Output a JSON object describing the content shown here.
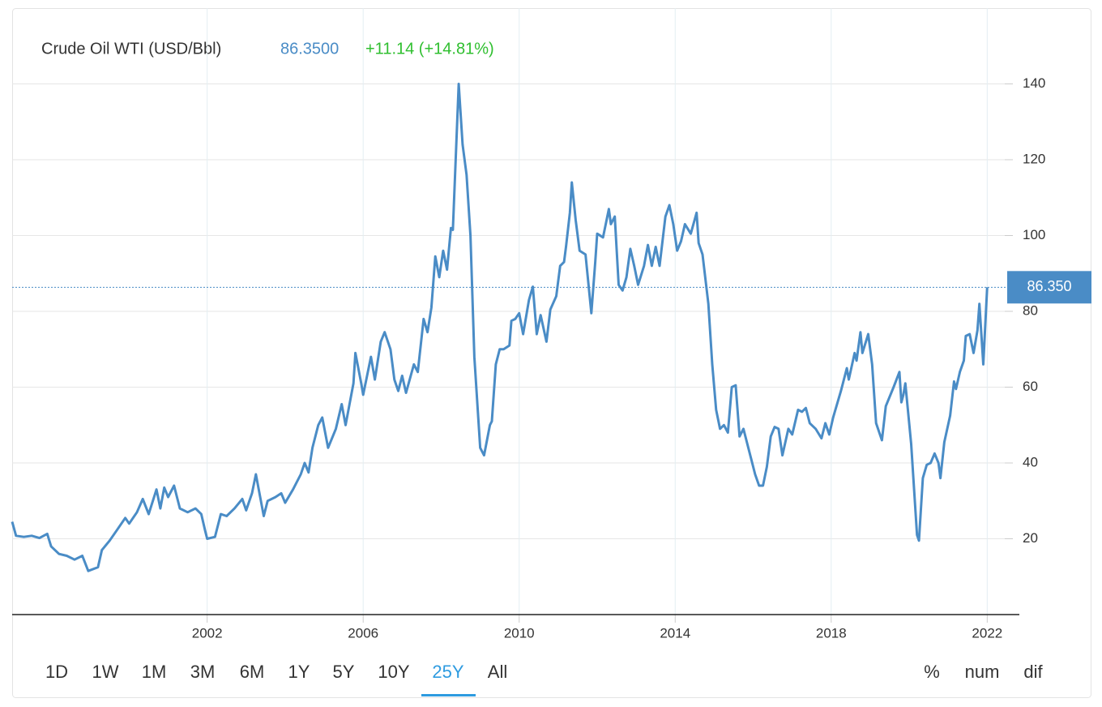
{
  "chart_data": {
    "type": "line",
    "title": "Crude Oil WTI (USD/Bbl)",
    "price": "86.3500",
    "change": "+11.14 (+14.81%)",
    "x": [
      1997.0,
      1997.1,
      1997.3,
      1997.5,
      1997.7,
      1997.9,
      1998.0,
      1998.2,
      1998.4,
      1998.6,
      1998.8,
      1998.95,
      1999.2,
      1999.3,
      1999.5,
      1999.7,
      1999.9,
      2000.0,
      2000.2,
      2000.35,
      2000.5,
      2000.7,
      2000.8,
      2000.9,
      2001.0,
      2001.15,
      2001.3,
      2001.5,
      2001.7,
      2001.85,
      2001.95,
      2002.0,
      2002.2,
      2002.35,
      2002.5,
      2002.7,
      2002.9,
      2003.0,
      2003.15,
      2003.25,
      2003.45,
      2003.55,
      2003.75,
      2003.9,
      2004.0,
      2004.2,
      2004.4,
      2004.5,
      2004.6,
      2004.7,
      2004.85,
      2004.95,
      2005.1,
      2005.3,
      2005.45,
      2005.55,
      2005.75,
      2005.8,
      2005.95,
      2006.0,
      2006.2,
      2006.3,
      2006.45,
      2006.55,
      2006.7,
      2006.8,
      2006.9,
      2007.0,
      2007.1,
      2007.3,
      2007.4,
      2007.55,
      2007.65,
      2007.75,
      2007.85,
      2007.95,
      2008.05,
      2008.15,
      2008.25,
      2008.3,
      2008.45,
      2008.55,
      2008.65,
      2008.75,
      2008.85,
      2008.95,
      2009.0,
      2009.1,
      2009.25,
      2009.3,
      2009.4,
      2009.5,
      2009.6,
      2009.75,
      2009.8,
      2009.9,
      2010.0,
      2010.1,
      2010.25,
      2010.35,
      2010.45,
      2010.55,
      2010.7,
      2010.8,
      2010.95,
      2011.05,
      2011.15,
      2011.2,
      2011.3,
      2011.35,
      2011.45,
      2011.55,
      2011.7,
      2011.85,
      2011.95,
      2012.0,
      2012.15,
      2012.3,
      2012.35,
      2012.45,
      2012.55,
      2012.65,
      2012.75,
      2012.85,
      2012.95,
      2013.05,
      2013.2,
      2013.3,
      2013.4,
      2013.5,
      2013.6,
      2013.75,
      2013.85,
      2013.95,
      2014.05,
      2014.15,
      2014.25,
      2014.4,
      2014.55,
      2014.6,
      2014.7,
      2014.85,
      2014.95,
      2015.05,
      2015.15,
      2015.25,
      2015.35,
      2015.45,
      2015.55,
      2015.65,
      2015.75,
      2015.85,
      2015.95,
      2016.05,
      2016.15,
      2016.25,
      2016.35,
      2016.45,
      2016.55,
      2016.65,
      2016.75,
      2016.9,
      2017.0,
      2017.15,
      2017.25,
      2017.35,
      2017.45,
      2017.6,
      2017.75,
      2017.85,
      2017.95,
      2018.05,
      2018.25,
      2018.4,
      2018.45,
      2018.6,
      2018.65,
      2018.75,
      2018.8,
      2018.95,
      2019.05,
      2019.15,
      2019.3,
      2019.4,
      2019.6,
      2019.75,
      2019.8,
      2019.85,
      2019.9,
      2020.05,
      2020.2,
      2020.25,
      2020.35,
      2020.45,
      2020.55,
      2020.65,
      2020.75,
      2020.8,
      2020.9,
      2021.05,
      2021.15,
      2021.2,
      2021.3,
      2021.4,
      2021.45,
      2021.55,
      2021.65,
      2021.75,
      2021.8,
      2021.9,
      2022.0
    ],
    "series": [
      {
        "name": "Crude Oil WTI",
        "color": "#4a8cc6",
        "values": [
          24.5,
          20.8,
          20.5,
          20.8,
          20.2,
          21.3,
          18,
          16,
          15.5,
          14.5,
          15.5,
          11.5,
          12.5,
          17,
          19.5,
          22.5,
          25.5,
          24,
          27,
          30.5,
          26.5,
          33,
          28,
          33.5,
          31,
          34,
          28,
          27,
          28,
          26.5,
          22,
          20,
          20.5,
          26.5,
          26,
          28,
          30.5,
          27.5,
          32,
          37,
          26,
          30,
          31,
          32,
          29.5,
          33,
          37,
          40,
          37.5,
          44,
          50,
          52,
          44,
          49,
          55.5,
          50,
          61,
          69,
          61,
          58,
          68,
          62,
          72,
          74.5,
          70,
          62,
          59,
          63,
          58.5,
          66,
          64,
          78,
          74.5,
          81,
          94.5,
          89,
          96,
          91,
          102,
          101.5,
          140,
          124,
          116,
          100,
          68,
          52,
          44,
          42,
          50,
          51,
          66,
          70,
          70,
          71,
          77.5,
          78,
          79.5,
          74,
          83,
          86.5,
          74,
          79,
          72,
          80.5,
          84,
          92,
          93,
          97,
          106,
          114,
          104,
          96,
          95,
          79.5,
          93,
          100.5,
          99.5,
          107,
          103,
          105,
          87,
          85.5,
          89,
          96.5,
          92,
          87,
          92,
          97.5,
          92,
          97,
          92,
          105,
          108,
          103,
          96,
          98.5,
          103,
          100.5,
          106,
          98,
          95,
          82,
          66,
          54,
          49,
          50,
          48,
          60,
          60.5,
          47,
          49,
          45,
          41,
          37,
          34,
          34,
          39,
          47,
          49.5,
          49,
          42,
          49,
          47.5,
          54,
          53.5,
          54.5,
          50.5,
          49,
          46.5,
          50.5,
          47.5,
          52,
          59,
          65,
          62,
          69,
          67,
          74.5,
          69,
          74,
          66,
          50.5,
          46,
          55,
          60,
          64,
          56,
          58,
          61,
          45,
          21,
          19.5,
          36,
          39.5,
          40,
          42.5,
          40,
          36,
          45.5,
          52.5,
          61.5,
          59.5,
          64,
          67,
          73.5,
          74,
          69,
          75,
          82,
          66,
          86.35
        ]
      }
    ],
    "price_line": {
      "value": 86.35,
      "label": "86.350"
    },
    "xlim": [
      1997,
      2022.45
    ],
    "xticks": [
      2002,
      2006,
      2010,
      2014,
      2018,
      2022
    ],
    "ylim": [
      0,
      160
    ],
    "yticks": [
      20,
      40,
      60,
      80,
      100,
      120,
      140
    ],
    "grid": true,
    "ranges": [
      "1D",
      "1W",
      "1M",
      "3M",
      "6M",
      "1Y",
      "5Y",
      "10Y",
      "25Y",
      "All"
    ],
    "selected_range": 8,
    "modes": [
      "%",
      "num",
      "dif"
    ]
  }
}
